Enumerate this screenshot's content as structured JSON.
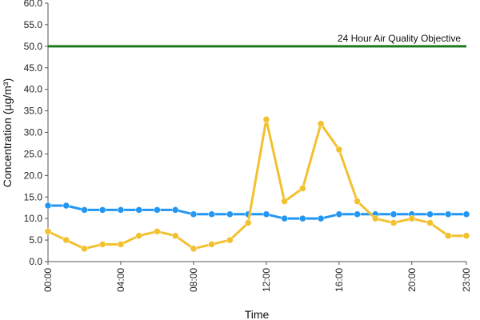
{
  "chart_data": {
    "type": "line",
    "xlabel": "Time",
    "ylabel": "Concentration (µg/m³)",
    "ylim": [
      0,
      60
    ],
    "y_ticks": [
      "0.0",
      "5.0",
      "10.0",
      "15.0",
      "20.0",
      "25.0",
      "30.0",
      "35.0",
      "40.0",
      "45.0",
      "50.0",
      "55.0",
      "60.0"
    ],
    "x_tick_labels": [
      "00:00",
      "04:00",
      "08:00",
      "12:00",
      "16:00",
      "20:00",
      "23:00"
    ],
    "x_tick_hours": [
      0,
      4,
      8,
      12,
      16,
      20,
      23
    ],
    "x": [
      0,
      1,
      2,
      3,
      4,
      5,
      6,
      7,
      8,
      9,
      10,
      11,
      12,
      13,
      14,
      15,
      16,
      17,
      18,
      19,
      20,
      21,
      22,
      23
    ],
    "series": [
      {
        "color": "#2196F3",
        "values": [
          13,
          13,
          12,
          12,
          12,
          12,
          12,
          12,
          11,
          11,
          11,
          11,
          11,
          10,
          10,
          10,
          11,
          11,
          11,
          11,
          11,
          11,
          11,
          11
        ]
      },
      {
        "color": "#F2C12E",
        "values": [
          7,
          5,
          3,
          4,
          4,
          6,
          7,
          6,
          3,
          4,
          5,
          9,
          33,
          14,
          17,
          32,
          26,
          14,
          10,
          9,
          10,
          9,
          6,
          6
        ]
      }
    ],
    "objective": {
      "value": 50,
      "label": "24 Hour Air Quality Objective",
      "color": "#1B7A1B"
    },
    "grid": false,
    "legend": "none"
  }
}
